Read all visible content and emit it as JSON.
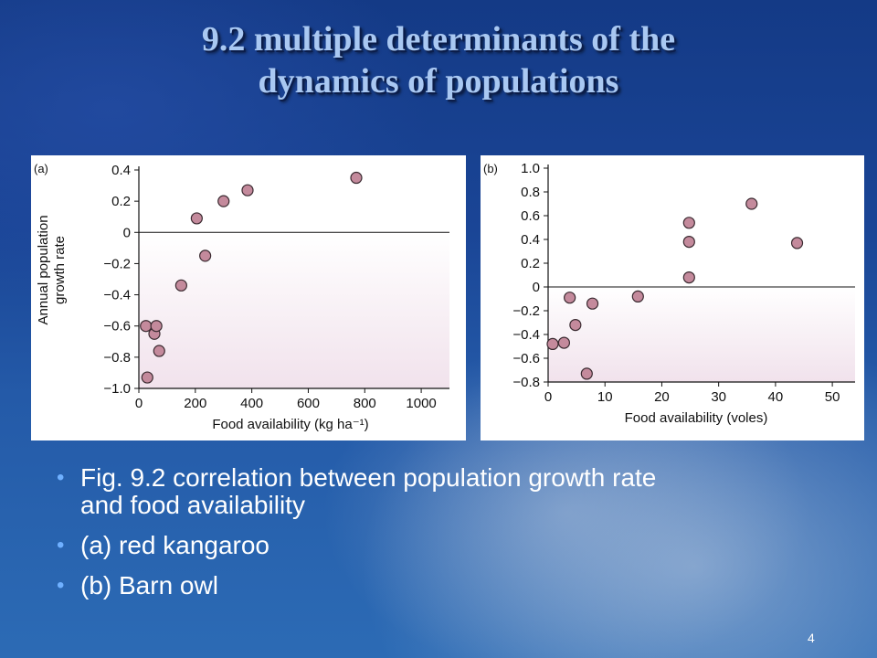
{
  "slide": {
    "title_line1": "9.2 multiple determinants of the",
    "title_line2": "dynamics of populations",
    "bullets": [
      "Fig. 9.2 correlation between population growth rate and food availability",
      "(a) red kangaroo",
      "(b) Barn owl"
    ],
    "page_number": "4"
  },
  "chart_data": [
    {
      "type": "scatter",
      "panel_label": "(a)",
      "xlabel": "Food availability (kg ha⁻¹)",
      "ylabel_lines": [
        "Annual population",
        "growth rate"
      ],
      "xlim": [
        0,
        1100
      ],
      "ylim": [
        -1.0,
        0.4
      ],
      "x_ticks": [
        0,
        200,
        400,
        600,
        800,
        1000
      ],
      "y_ticks": [
        0.4,
        0.2,
        0,
        -0.2,
        -0.4,
        -0.6,
        -0.8,
        -1.0
      ],
      "y_tick_labels": [
        "0.4",
        "0.2",
        "0",
        "−0.2",
        "−0.4",
        "−0.6",
        "−0.8",
        "−1.0"
      ],
      "zero_line": true,
      "negative_region_shaded": true,
      "shade_color": "#f1e2ec",
      "point_color": "#c48a9c",
      "points": [
        {
          "x": 25,
          "y": -0.6
        },
        {
          "x": 30,
          "y": -0.93
        },
        {
          "x": 55,
          "y": -0.65
        },
        {
          "x": 62,
          "y": -0.6
        },
        {
          "x": 72,
          "y": -0.76
        },
        {
          "x": 150,
          "y": -0.34
        },
        {
          "x": 205,
          "y": 0.09
        },
        {
          "x": 235,
          "y": -0.15
        },
        {
          "x": 300,
          "y": 0.2
        },
        {
          "x": 385,
          "y": 0.27
        },
        {
          "x": 770,
          "y": 0.35
        }
      ]
    },
    {
      "type": "scatter",
      "panel_label": "(b)",
      "xlabel": "Food availability (voles)",
      "xlim": [
        0,
        54
      ],
      "ylim": [
        -0.8,
        1.0
      ],
      "x_ticks": [
        0,
        10,
        20,
        30,
        40,
        50
      ],
      "y_ticks": [
        1.0,
        0.8,
        0.6,
        0.4,
        0.2,
        0,
        -0.2,
        -0.4,
        -0.6,
        -0.8
      ],
      "y_tick_labels": [
        "1.0",
        "0.8",
        "0.6",
        "0.4",
        "0.2",
        "0",
        "−0.2",
        "−0.4",
        "−0.6",
        "−0.8"
      ],
      "zero_line": true,
      "negative_region_shaded": true,
      "shade_color": "#f1e2ec",
      "point_color": "#c48a9c",
      "points": [
        {
          "x": 0.8,
          "y": -0.48
        },
        {
          "x": 2.8,
          "y": -0.47
        },
        {
          "x": 3.8,
          "y": -0.09
        },
        {
          "x": 4.8,
          "y": -0.32
        },
        {
          "x": 6.8,
          "y": -0.73
        },
        {
          "x": 7.8,
          "y": -0.14
        },
        {
          "x": 15.8,
          "y": -0.08
        },
        {
          "x": 24.8,
          "y": 0.54
        },
        {
          "x": 24.8,
          "y": 0.38
        },
        {
          "x": 24.8,
          "y": 0.08
        },
        {
          "x": 35.8,
          "y": 0.7
        },
        {
          "x": 43.8,
          "y": 0.37
        }
      ]
    }
  ]
}
